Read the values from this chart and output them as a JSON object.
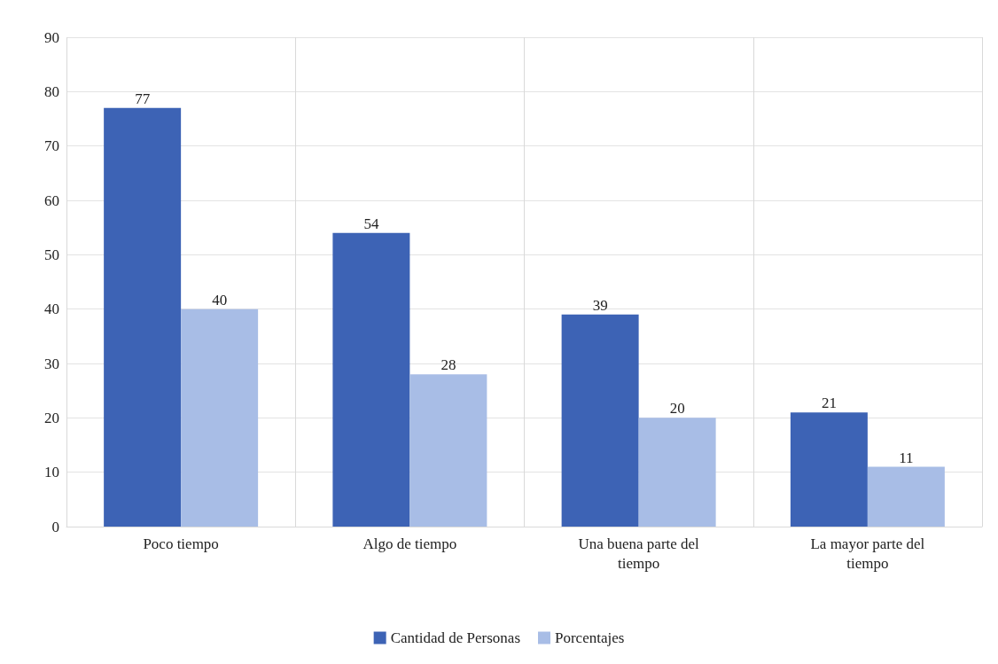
{
  "chart_data": {
    "type": "bar",
    "categories": [
      "Poco tiempo",
      "Algo de tiempo",
      "Una buena parte del\ntiempo",
      "La mayor parte del\ntiempo"
    ],
    "series": [
      {
        "name": "Cantidad de Personas",
        "color": "#3d63b5",
        "values": [
          77,
          54,
          39,
          21
        ]
      },
      {
        "name": "Porcentajes",
        "color": "#a8bde6",
        "values": [
          40,
          28,
          20,
          11
        ]
      }
    ],
    "ylim": [
      0,
      90
    ],
    "yticks": [
      0,
      10,
      20,
      30,
      40,
      50,
      60,
      70,
      80,
      90
    ],
    "grid": true,
    "legend": "bottom",
    "data_labels": true
  }
}
